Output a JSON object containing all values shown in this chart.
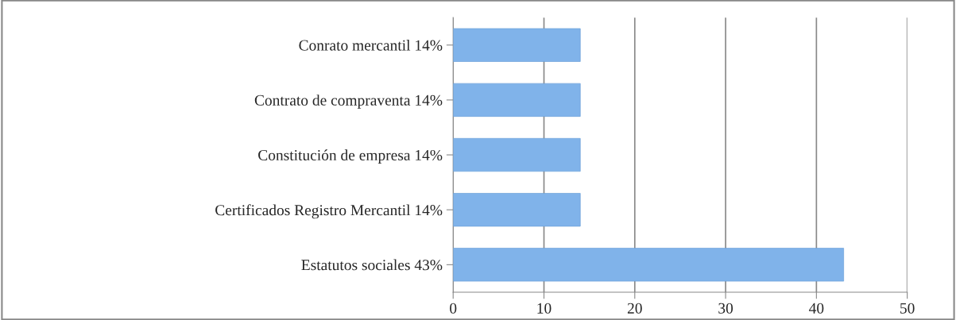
{
  "chart_data": {
    "type": "bar",
    "orientation": "horizontal",
    "categories": [
      "Conrato mercantil 14%",
      "Contrato de compraventa 14%",
      "Constitución de empresa 14%",
      "Certificados Registro Mercantil 14%",
      "Estatutos sociales 43%"
    ],
    "values": [
      14,
      14,
      14,
      14,
      43
    ],
    "color": "#80b3ea",
    "xlim": [
      0,
      50
    ],
    "xticks": [
      0,
      10,
      20,
      30,
      40,
      50
    ],
    "grid": "x"
  }
}
